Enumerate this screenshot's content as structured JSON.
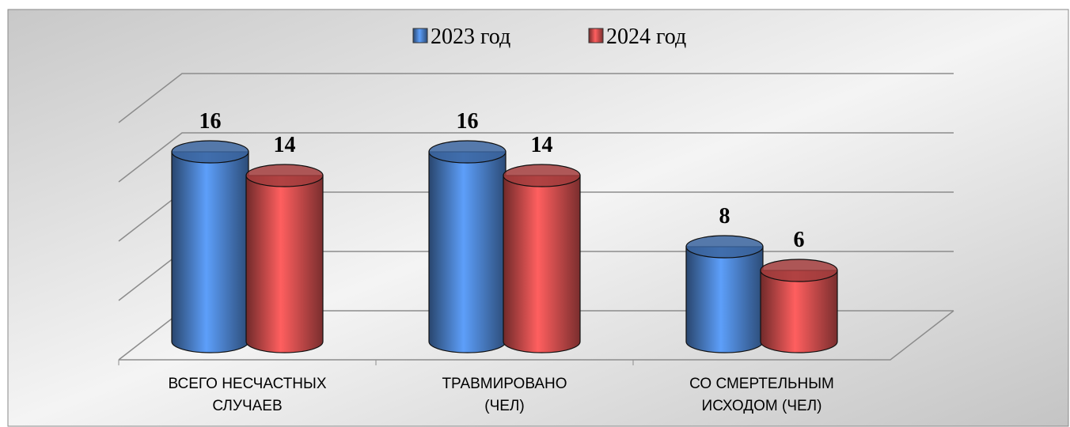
{
  "chart_data": {
    "type": "bar3d",
    "categories": [
      "ВСЕГО НЕСЧАСТНЫХ\nСЛУЧАЕВ",
      "ТРАВМИРОВАНО\n(ЧЕЛ)",
      "СО СМЕРТЕЛЬНЫМ\nИСХОДОМ (ЧЕЛ)"
    ],
    "series": [
      {
        "name": "2023 год",
        "color": "#4a7fc8",
        "values": [
          16,
          16,
          8
        ]
      },
      {
        "name": "2024 год",
        "color": "#cc4c4c",
        "values": [
          14,
          14,
          6
        ]
      }
    ],
    "ylim": [
      0,
      20
    ],
    "yticks": [
      0,
      5,
      10,
      15,
      20
    ],
    "grid": true,
    "legend": "top"
  }
}
